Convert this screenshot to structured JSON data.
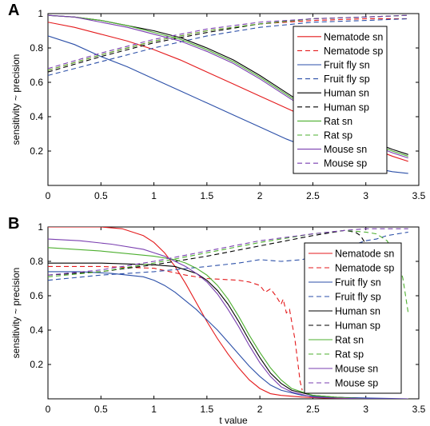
{
  "colors": {
    "Nematode": "#e41a1c",
    "Fruit fly": "#2b4fa8",
    "Human": "#000000",
    "Rat": "#4daf2f",
    "Mouse": "#7a3fb0"
  },
  "chart_data": [
    {
      "type": "line",
      "panel_label": "A",
      "xlabel": "",
      "ylabel": "sensitivity ~ precision",
      "xlim": [
        0,
        3.5
      ],
      "ylim": [
        0,
        1
      ],
      "xticks": [
        "0",
        "0.5",
        "1",
        "1.5",
        "2",
        "2.5",
        "3",
        "3.5"
      ],
      "yticks": [
        "0.2",
        "0.4",
        "0.6",
        "0.8",
        "1"
      ],
      "legend_position": "right",
      "series": [
        {
          "name": "Nematode sn",
          "style": "solid",
          "x": [
            0,
            0.25,
            0.5,
            0.75,
            1.0,
            1.25,
            1.5,
            1.75,
            2.0,
            2.25,
            2.5,
            2.75,
            3.0,
            3.25,
            3.4
          ],
          "y": [
            0.95,
            0.92,
            0.88,
            0.84,
            0.79,
            0.73,
            0.66,
            0.59,
            0.52,
            0.45,
            0.38,
            0.31,
            0.23,
            0.17,
            0.14
          ]
        },
        {
          "name": "Nematode sp",
          "style": "dashed",
          "x": [
            0,
            0.5,
            1.0,
            1.5,
            2.0,
            2.5,
            3.0,
            3.4
          ],
          "y": [
            0.67,
            0.76,
            0.84,
            0.9,
            0.94,
            0.96,
            0.97,
            0.97
          ]
        },
        {
          "name": "Fruit fly sn",
          "style": "solid",
          "x": [
            0,
            0.25,
            0.5,
            0.75,
            1.0,
            1.25,
            1.5,
            1.75,
            2.0,
            2.25,
            2.5,
            2.75,
            3.0,
            3.25,
            3.4
          ],
          "y": [
            0.87,
            0.82,
            0.75,
            0.69,
            0.62,
            0.55,
            0.48,
            0.41,
            0.34,
            0.27,
            0.21,
            0.15,
            0.11,
            0.08,
            0.07
          ]
        },
        {
          "name": "Fruit fly sp",
          "style": "dashed",
          "x": [
            0,
            0.5,
            1.0,
            1.5,
            2.0,
            2.5,
            3.0,
            3.4
          ],
          "y": [
            0.64,
            0.72,
            0.8,
            0.87,
            0.92,
            0.95,
            0.96,
            0.97
          ]
        },
        {
          "name": "Human sn",
          "style": "solid",
          "x": [
            0,
            0.25,
            0.5,
            0.75,
            1.0,
            1.25,
            1.5,
            1.75,
            2.0,
            2.25,
            2.5,
            2.75,
            3.0,
            3.25,
            3.4
          ],
          "y": [
            0.99,
            0.98,
            0.96,
            0.93,
            0.9,
            0.86,
            0.8,
            0.73,
            0.64,
            0.54,
            0.44,
            0.35,
            0.27,
            0.21,
            0.18
          ]
        },
        {
          "name": "Human sp",
          "style": "dashed",
          "x": [
            0,
            0.5,
            1.0,
            1.5,
            2.0,
            2.5,
            3.0,
            3.4
          ],
          "y": [
            0.66,
            0.75,
            0.83,
            0.89,
            0.94,
            0.97,
            0.98,
            0.99
          ]
        },
        {
          "name": "Rat sn",
          "style": "solid",
          "x": [
            0,
            0.25,
            0.5,
            0.75,
            1.0,
            1.25,
            1.5,
            1.75,
            2.0,
            2.25,
            2.5,
            2.75,
            3.0,
            3.25,
            3.4
          ],
          "y": [
            0.99,
            0.98,
            0.96,
            0.93,
            0.89,
            0.85,
            0.79,
            0.72,
            0.63,
            0.53,
            0.43,
            0.34,
            0.26,
            0.2,
            0.17
          ]
        },
        {
          "name": "Rat sp",
          "style": "dashed",
          "x": [
            0,
            0.5,
            1.0,
            1.5,
            2.0,
            2.5,
            3.0,
            3.4
          ],
          "y": [
            0.67,
            0.76,
            0.84,
            0.9,
            0.94,
            0.97,
            0.98,
            0.99
          ]
        },
        {
          "name": "Mouse sn",
          "style": "solid",
          "x": [
            0,
            0.25,
            0.5,
            0.75,
            1.0,
            1.25,
            1.5,
            1.75,
            2.0,
            2.25,
            2.5,
            2.75,
            3.0,
            3.25,
            3.4
          ],
          "y": [
            0.99,
            0.98,
            0.95,
            0.92,
            0.88,
            0.84,
            0.78,
            0.71,
            0.62,
            0.52,
            0.42,
            0.33,
            0.25,
            0.19,
            0.16
          ]
        },
        {
          "name": "Mouse sp",
          "style": "dashed",
          "x": [
            0,
            0.5,
            1.0,
            1.5,
            2.0,
            2.5,
            3.0,
            3.4
          ],
          "y": [
            0.68,
            0.77,
            0.85,
            0.91,
            0.95,
            0.97,
            0.98,
            0.99
          ]
        }
      ]
    },
    {
      "type": "line",
      "panel_label": "B",
      "xlabel": "t value",
      "ylabel": "sensitivity ~ precision",
      "xlim": [
        0,
        3.5
      ],
      "ylim": [
        0,
        1
      ],
      "xticks": [
        "0",
        "0.5",
        "1",
        "1.5",
        "2",
        "2.5",
        "3",
        "3.5"
      ],
      "yticks": [
        "0.2",
        "0.4",
        "0.6",
        "0.8",
        "1"
      ],
      "legend_position": "right",
      "series": [
        {
          "name": "Nematode sn",
          "style": "solid",
          "x": [
            0,
            0.3,
            0.5,
            0.7,
            0.9,
            1.0,
            1.1,
            1.2,
            1.3,
            1.4,
            1.5,
            1.6,
            1.7,
            1.8,
            1.9,
            2.0,
            2.1,
            2.2,
            2.4,
            2.6,
            3.0,
            3.4
          ],
          "y": [
            1.0,
            1.0,
            1.0,
            0.99,
            0.95,
            0.91,
            0.85,
            0.77,
            0.67,
            0.56,
            0.45,
            0.35,
            0.26,
            0.18,
            0.11,
            0.06,
            0.03,
            0.02,
            0.01,
            0.005,
            0.0,
            0.0
          ]
        },
        {
          "name": "Nematode sp",
          "style": "dashed",
          "x": [
            0,
            0.5,
            1.0,
            1.3,
            1.5,
            1.8,
            1.9,
            2.0,
            2.05,
            2.1,
            2.15,
            2.2,
            2.22,
            2.25,
            2.28,
            2.3,
            2.33,
            2.36,
            2.38,
            2.4
          ],
          "y": [
            0.77,
            0.77,
            0.76,
            0.72,
            0.7,
            0.69,
            0.68,
            0.66,
            0.62,
            0.64,
            0.6,
            0.55,
            0.58,
            0.5,
            0.52,
            0.45,
            0.35,
            0.2,
            0.1,
            0.05
          ]
        },
        {
          "name": "Fruit fly sn",
          "style": "solid",
          "x": [
            0,
            0.3,
            0.6,
            0.9,
            1.0,
            1.1,
            1.2,
            1.3,
            1.4,
            1.5,
            1.6,
            1.7,
            1.8,
            1.9,
            2.0,
            2.1,
            2.2,
            2.4,
            2.6,
            3.0,
            3.4
          ],
          "y": [
            0.74,
            0.74,
            0.73,
            0.71,
            0.69,
            0.66,
            0.62,
            0.57,
            0.52,
            0.46,
            0.4,
            0.33,
            0.26,
            0.19,
            0.13,
            0.08,
            0.05,
            0.02,
            0.01,
            0.005,
            0.0
          ]
        },
        {
          "name": "Fruit fly sp",
          "style": "dashed",
          "x": [
            0,
            0.5,
            1.0,
            1.5,
            1.8,
            2.0,
            2.2,
            2.4,
            2.5,
            2.6,
            2.7,
            2.8,
            2.9,
            3.0,
            3.1,
            3.2,
            3.3,
            3.4
          ],
          "y": [
            0.69,
            0.72,
            0.74,
            0.77,
            0.79,
            0.81,
            0.8,
            0.81,
            0.83,
            0.79,
            0.82,
            0.85,
            0.9,
            0.92,
            0.93,
            0.95,
            0.96,
            0.97
          ]
        },
        {
          "name": "Human sn",
          "style": "solid",
          "x": [
            0,
            0.5,
            1.0,
            1.2,
            1.3,
            1.4,
            1.5,
            1.6,
            1.7,
            1.8,
            1.9,
            2.0,
            2.1,
            2.2,
            2.3,
            2.5,
            2.7,
            3.0,
            3.4
          ],
          "y": [
            0.79,
            0.79,
            0.78,
            0.77,
            0.75,
            0.73,
            0.69,
            0.63,
            0.55,
            0.45,
            0.34,
            0.24,
            0.15,
            0.09,
            0.05,
            0.02,
            0.01,
            0.0,
            0.0
          ]
        },
        {
          "name": "Human sp",
          "style": "dashed",
          "x": [
            0,
            0.5,
            1.0,
            1.5,
            2.0,
            2.5,
            2.7,
            2.8,
            2.9,
            2.95,
            3.0,
            3.05
          ],
          "y": [
            0.72,
            0.74,
            0.78,
            0.83,
            0.89,
            0.95,
            0.97,
            0.98,
            0.97,
            0.95,
            0.9,
            0.85
          ]
        },
        {
          "name": "Rat sn",
          "style": "solid",
          "x": [
            0,
            0.5,
            1.0,
            1.2,
            1.3,
            1.4,
            1.5,
            1.6,
            1.7,
            1.8,
            1.9,
            2.0,
            2.1,
            2.2,
            2.3,
            2.5,
            2.7,
            3.0,
            3.4
          ],
          "y": [
            0.88,
            0.86,
            0.83,
            0.81,
            0.79,
            0.76,
            0.72,
            0.66,
            0.58,
            0.48,
            0.37,
            0.27,
            0.18,
            0.11,
            0.06,
            0.02,
            0.01,
            0.0,
            0.0
          ]
        },
        {
          "name": "Rat sp",
          "style": "dashed",
          "x": [
            0,
            0.5,
            1.0,
            1.5,
            2.0,
            2.5,
            2.8,
            3.0,
            3.1,
            3.2,
            3.3,
            3.35,
            3.4
          ],
          "y": [
            0.71,
            0.74,
            0.79,
            0.85,
            0.91,
            0.96,
            0.98,
            0.97,
            0.96,
            0.92,
            0.82,
            0.7,
            0.5
          ]
        },
        {
          "name": "Mouse sn",
          "style": "solid",
          "x": [
            0,
            0.3,
            0.6,
            0.9,
            1.0,
            1.1,
            1.2,
            1.3,
            1.4,
            1.5,
            1.6,
            1.7,
            1.8,
            1.9,
            2.0,
            2.1,
            2.2,
            2.3,
            2.5,
            2.7,
            3.0,
            3.4
          ],
          "y": [
            0.93,
            0.92,
            0.9,
            0.87,
            0.85,
            0.83,
            0.8,
            0.77,
            0.73,
            0.68,
            0.61,
            0.52,
            0.42,
            0.31,
            0.21,
            0.13,
            0.07,
            0.04,
            0.01,
            0.005,
            0.0,
            0.0
          ]
        },
        {
          "name": "Mouse sp",
          "style": "dashed",
          "x": [
            0,
            0.5,
            1.0,
            1.5,
            2.0,
            2.5,
            2.8,
            3.0,
            3.2,
            3.4
          ],
          "y": [
            0.72,
            0.75,
            0.8,
            0.86,
            0.92,
            0.96,
            0.98,
            0.99,
            0.99,
            0.99
          ]
        }
      ]
    }
  ]
}
